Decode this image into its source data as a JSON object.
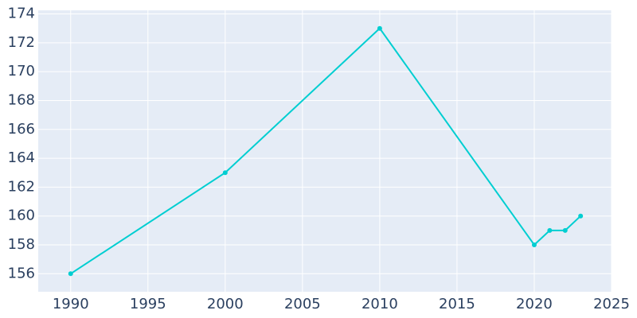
{
  "chart_data": {
    "type": "line",
    "x": [
      1990,
      2000,
      2010,
      2020,
      2021,
      2022,
      2023
    ],
    "series": [
      {
        "color": "#00ced1",
        "values": [
          156,
          163,
          173,
          158,
          159,
          159,
          160
        ]
      }
    ],
    "xlim": [
      1987.9,
      2025
    ],
    "xticks": [
      1990,
      1995,
      2000,
      2005,
      2010,
      2015,
      2020,
      2025
    ],
    "ylim": [
      154.75,
      174.25
    ],
    "yticks": [
      156,
      158,
      160,
      162,
      164,
      166,
      168,
      170,
      172,
      174
    ],
    "grid": true
  }
}
